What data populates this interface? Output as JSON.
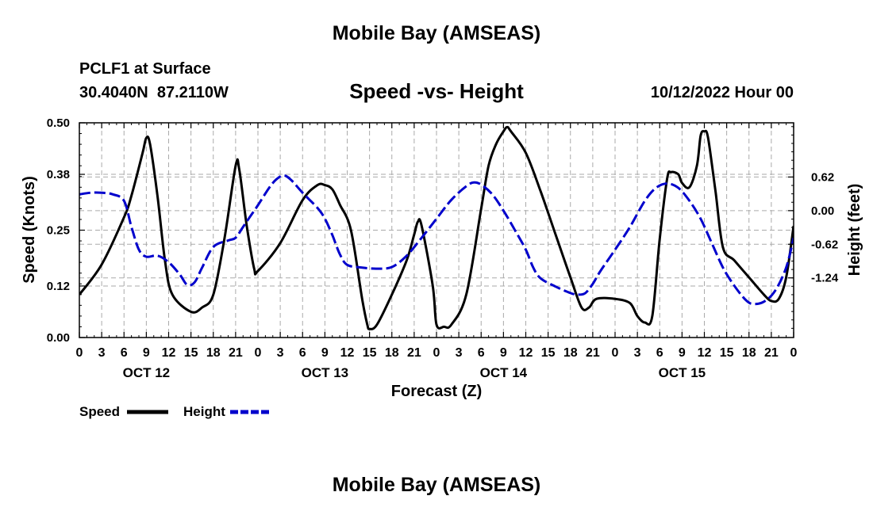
{
  "header": {
    "title": "Mobile Bay (AMSEAS)",
    "station": "PCLF1 at Surface",
    "coords": "30.4040N  87.2110W",
    "run_time": "10/12/2022 Hour 00"
  },
  "footer": {
    "title": "Mobile Bay (AMSEAS)"
  },
  "chart_data": {
    "type": "line",
    "title": "Speed -vs- Height",
    "xlabel": "Forecast (Z)",
    "ylabel_left": "Speed (Knots)",
    "ylabel_right": "Height (feet)",
    "x_range_hours": [
      0,
      96
    ],
    "x_tick_labels": [
      "0",
      "3",
      "6",
      "9",
      "12",
      "15",
      "18",
      "21",
      "0",
      "3",
      "6",
      "9",
      "12",
      "15",
      "18",
      "21",
      "0",
      "3",
      "6",
      "9",
      "12",
      "15",
      "18",
      "21",
      "0",
      "3",
      "6",
      "9",
      "12",
      "15",
      "18",
      "21",
      "0"
    ],
    "day_labels": [
      {
        "label": "OCT 12",
        "hour": 9
      },
      {
        "label": "OCT 13",
        "hour": 33
      },
      {
        "label": "OCT 14",
        "hour": 57
      },
      {
        "label": "OCT 15",
        "hour": 81
      }
    ],
    "y_left": {
      "range": [
        0,
        0.5
      ],
      "ticks": [
        0.0,
        0.12,
        0.25,
        0.38,
        0.5
      ],
      "tick_labels": [
        "0.00",
        "0.12",
        "0.25",
        "0.38",
        "0.50"
      ]
    },
    "y_right": {
      "range": [
        -2.34,
        1.62
      ],
      "ticks": [
        0.62,
        0.0,
        -0.62,
        -1.24
      ],
      "tick_labels": [
        "0.62",
        "0.00",
        "-0.62",
        "-1.24"
      ]
    },
    "grid": true,
    "legend_position": "bottom-left",
    "series": [
      {
        "name": "Speed",
        "axis": "left",
        "color": "#000000",
        "dash": "solid",
        "points": [
          [
            0,
            0.1
          ],
          [
            3,
            0.17
          ],
          [
            6,
            0.28
          ],
          [
            7,
            0.33
          ],
          [
            8.5,
            0.43
          ],
          [
            9,
            0.465
          ],
          [
            9.5,
            0.45
          ],
          [
            10.5,
            0.33
          ],
          [
            11.5,
            0.18
          ],
          [
            12.5,
            0.1
          ],
          [
            15,
            0.06
          ],
          [
            16.5,
            0.07
          ],
          [
            18,
            0.1
          ],
          [
            19.5,
            0.23
          ],
          [
            21,
            0.4
          ],
          [
            21.5,
            0.39
          ],
          [
            22.5,
            0.26
          ],
          [
            23.5,
            0.16
          ],
          [
            24,
            0.155
          ],
          [
            27,
            0.22
          ],
          [
            30,
            0.32
          ],
          [
            32,
            0.355
          ],
          [
            33,
            0.355
          ],
          [
            34,
            0.345
          ],
          [
            35,
            0.31
          ],
          [
            36.5,
            0.25
          ],
          [
            38,
            0.09
          ],
          [
            38.7,
            0.03
          ],
          [
            39,
            0.02
          ],
          [
            40,
            0.03
          ],
          [
            42,
            0.1
          ],
          [
            44,
            0.18
          ],
          [
            45,
            0.24
          ],
          [
            45.5,
            0.27
          ],
          [
            46,
            0.26
          ],
          [
            47.5,
            0.12
          ],
          [
            48,
            0.03
          ],
          [
            49,
            0.025
          ],
          [
            50,
            0.03
          ],
          [
            52,
            0.1
          ],
          [
            54,
            0.3
          ],
          [
            55,
            0.4
          ],
          [
            56,
            0.45
          ],
          [
            57,
            0.48
          ],
          [
            57.5,
            0.49
          ],
          [
            58,
            0.48
          ],
          [
            60,
            0.43
          ],
          [
            62,
            0.34
          ],
          [
            64,
            0.24
          ],
          [
            66,
            0.14
          ],
          [
            67.5,
            0.07
          ],
          [
            68.5,
            0.07
          ],
          [
            69.5,
            0.09
          ],
          [
            72,
            0.09
          ],
          [
            74,
            0.08
          ],
          [
            75,
            0.05
          ],
          [
            76,
            0.035
          ],
          [
            77,
            0.05
          ],
          [
            78,
            0.23
          ],
          [
            79,
            0.37
          ],
          [
            79.5,
            0.385
          ],
          [
            80.5,
            0.38
          ],
          [
            81,
            0.36
          ],
          [
            82,
            0.35
          ],
          [
            83,
            0.4
          ],
          [
            83.5,
            0.47
          ],
          [
            84,
            0.48
          ],
          [
            84.5,
            0.465
          ],
          [
            85.5,
            0.34
          ],
          [
            86.5,
            0.21
          ],
          [
            88,
            0.18
          ],
          [
            90,
            0.14
          ],
          [
            92,
            0.1
          ],
          [
            93,
            0.085
          ],
          [
            94,
            0.09
          ],
          [
            95,
            0.14
          ],
          [
            96,
            0.26
          ]
        ]
      },
      {
        "name": "Height",
        "axis": "right",
        "color": "#0000cc",
        "dash": "dashed",
        "points": [
          [
            0,
            0.3
          ],
          [
            1.5,
            0.33
          ],
          [
            3,
            0.33
          ],
          [
            4.5,
            0.3
          ],
          [
            6,
            0.18
          ],
          [
            7,
            -0.3
          ],
          [
            8,
            -0.72
          ],
          [
            9,
            -0.85
          ],
          [
            10.5,
            -0.83
          ],
          [
            12,
            -0.95
          ],
          [
            13.5,
            -1.18
          ],
          [
            14.5,
            -1.37
          ],
          [
            15.5,
            -1.32
          ],
          [
            16.5,
            -1.05
          ],
          [
            18,
            -0.67
          ],
          [
            20,
            -0.55
          ],
          [
            21,
            -0.5
          ],
          [
            22,
            -0.3
          ],
          [
            23,
            -0.1
          ],
          [
            24,
            0.1
          ],
          [
            25.5,
            0.42
          ],
          [
            26.5,
            0.58
          ],
          [
            27.5,
            0.65
          ],
          [
            28.5,
            0.56
          ],
          [
            30,
            0.33
          ],
          [
            32,
            0.05
          ],
          [
            33,
            -0.15
          ],
          [
            34,
            -0.45
          ],
          [
            35,
            -0.8
          ],
          [
            36,
            -1.0
          ],
          [
            38,
            -1.05
          ],
          [
            40,
            -1.07
          ],
          [
            42,
            -1.04
          ],
          [
            44,
            -0.83
          ],
          [
            46,
            -0.5
          ],
          [
            48,
            -0.15
          ],
          [
            50,
            0.2
          ],
          [
            52,
            0.45
          ],
          [
            53,
            0.52
          ],
          [
            54,
            0.48
          ],
          [
            55.5,
            0.3
          ],
          [
            57,
            0.0
          ],
          [
            58.5,
            -0.35
          ],
          [
            60,
            -0.72
          ],
          [
            61,
            -1.05
          ],
          [
            62,
            -1.25
          ],
          [
            64,
            -1.4
          ],
          [
            66,
            -1.52
          ],
          [
            67,
            -1.55
          ],
          [
            68,
            -1.52
          ],
          [
            69,
            -1.35
          ],
          [
            70,
            -1.12
          ],
          [
            72,
            -0.72
          ],
          [
            74,
            -0.3
          ],
          [
            76,
            0.18
          ],
          [
            77.5,
            0.42
          ],
          [
            79,
            0.5
          ],
          [
            80.5,
            0.42
          ],
          [
            82,
            0.18
          ],
          [
            83.5,
            -0.15
          ],
          [
            85,
            -0.6
          ],
          [
            86.5,
            -1.05
          ],
          [
            88,
            -1.38
          ],
          [
            89.5,
            -1.64
          ],
          [
            90.5,
            -1.72
          ],
          [
            92,
            -1.68
          ],
          [
            93.5,
            -1.48
          ],
          [
            95,
            -1.05
          ],
          [
            96,
            -0.5
          ]
        ]
      }
    ],
    "legend": [
      {
        "label": "Speed",
        "color": "#000000",
        "dash": "solid"
      },
      {
        "label": "Height",
        "color": "#0000cc",
        "dash": "dashed"
      }
    ]
  }
}
